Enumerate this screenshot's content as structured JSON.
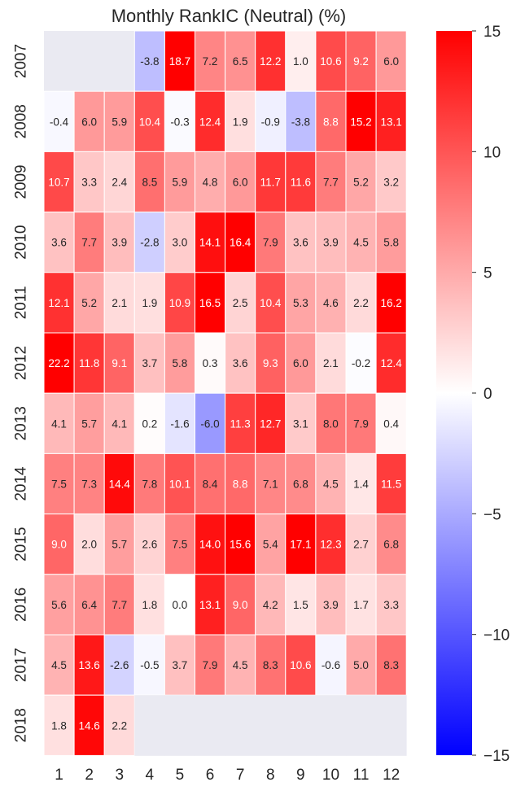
{
  "chart_data": {
    "type": "heatmap",
    "title": "Monthly RankIC (Neutral) (%)",
    "xlabel": "",
    "ylabel": "",
    "x_categories": [
      "1",
      "2",
      "3",
      "4",
      "5",
      "6",
      "7",
      "8",
      "9",
      "10",
      "11",
      "12"
    ],
    "y_categories": [
      "2007",
      "2008",
      "2009",
      "2010",
      "2011",
      "2012",
      "2013",
      "2014",
      "2015",
      "2016",
      "2017",
      "2018"
    ],
    "values": [
      [
        null,
        null,
        null,
        -3.8,
        18.7,
        7.2,
        6.5,
        12.2,
        1.0,
        10.6,
        9.2,
        6.0
      ],
      [
        -0.4,
        6.0,
        5.9,
        10.4,
        -0.3,
        12.4,
        1.9,
        -0.9,
        -3.8,
        8.8,
        15.2,
        13.1
      ],
      [
        10.7,
        3.3,
        2.4,
        8.5,
        5.9,
        4.8,
        6.0,
        11.7,
        11.6,
        7.7,
        5.2,
        3.2
      ],
      [
        3.6,
        7.7,
        3.9,
        -2.8,
        3.0,
        14.1,
        16.4,
        7.9,
        3.6,
        3.9,
        4.5,
        5.8
      ],
      [
        12.1,
        5.2,
        2.1,
        1.9,
        10.9,
        16.5,
        2.5,
        10.4,
        5.3,
        4.6,
        2.2,
        16.2
      ],
      [
        22.2,
        11.8,
        9.1,
        3.7,
        5.8,
        0.3,
        3.6,
        9.3,
        6.0,
        2.1,
        -0.2,
        12.4
      ],
      [
        4.1,
        5.7,
        4.1,
        0.2,
        -1.6,
        -6.0,
        11.3,
        12.7,
        3.1,
        8.0,
        7.9,
        0.4
      ],
      [
        7.5,
        7.3,
        14.4,
        7.8,
        10.1,
        8.4,
        8.8,
        7.1,
        6.8,
        4.5,
        1.4,
        11.5
      ],
      [
        9.0,
        2.0,
        5.7,
        2.6,
        7.5,
        14.0,
        15.6,
        5.4,
        17.1,
        12.3,
        2.7,
        6.8
      ],
      [
        5.6,
        6.4,
        7.7,
        1.8,
        -0.0,
        13.1,
        9.0,
        4.2,
        1.5,
        3.9,
        1.7,
        3.3
      ],
      [
        4.5,
        13.6,
        -2.6,
        -0.5,
        3.7,
        7.9,
        4.5,
        8.3,
        10.6,
        -0.6,
        5.0,
        8.3
      ],
      [
        1.8,
        14.6,
        2.2,
        null,
        null,
        null,
        null,
        null,
        null,
        null,
        null,
        null
      ]
    ],
    "colorbar": {
      "min": -15,
      "max": 15,
      "ticks": [
        15,
        10,
        5,
        0,
        -5,
        -10,
        -15
      ],
      "tick_labels": [
        "15",
        "10",
        "5",
        "0",
        "−5",
        "−10",
        "−15"
      ],
      "colormap": "bwr",
      "low_color": "#0000ff",
      "mid_color": "#ffffff",
      "high_color": "#ff0000"
    },
    "missing_color": "#eaeaf2",
    "legend": "colorbar-right"
  }
}
